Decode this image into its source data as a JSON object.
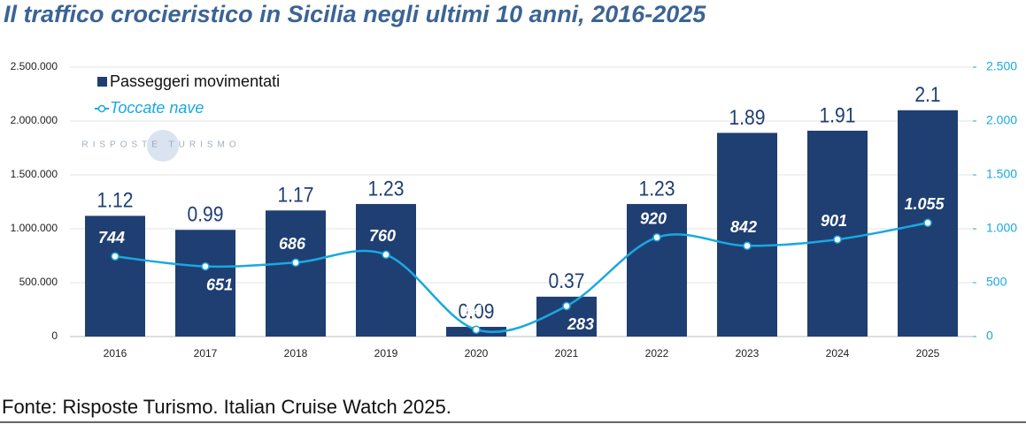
{
  "chart_data": {
    "type": "bar",
    "title": "Il traffico crocieristico in Sicilia negli ultimi 10 anni, 2016-2025",
    "source": "Fonte: Risposte Turismo. Italian Cruise Watch 2025.",
    "watermark": "RISPOSTE TURISMO",
    "categories": [
      "2016",
      "2017",
      "2018",
      "2019",
      "2020",
      "2021",
      "2022",
      "2023",
      "2024",
      "2025"
    ],
    "series": [
      {
        "name": "Passeggeri movimentati",
        "type": "bar",
        "color": "#1f3f73",
        "values": [
          1120000,
          990000,
          1170000,
          1230000,
          90000,
          370000,
          1230000,
          1890000,
          1910000,
          2100000
        ],
        "value_labels": [
          "1.12",
          "0.99",
          "1.17",
          "1.23",
          "0.09",
          "0.37",
          "1.23",
          "1.89",
          "1.91",
          "2.1"
        ]
      },
      {
        "name": "Toccate nave",
        "type": "line",
        "axis": "y2",
        "color": "#19a9e0",
        "values": [
          744,
          651,
          686,
          760,
          64,
          283,
          920,
          842,
          901,
          1055
        ],
        "value_labels": [
          "744",
          "651",
          "686",
          "760",
          "64",
          "283",
          "920",
          "842",
          "901",
          "1.055"
        ]
      }
    ],
    "ylim": [
      0,
      2500000
    ],
    "yticks": [
      0,
      {
        "value": 500000,
        "label": "500.000"
      },
      {
        "value": 1000000,
        "label": "1.000.000"
      },
      {
        "value": 1500000,
        "label": "1.500.000"
      },
      {
        "value": 2000000,
        "label": "2.000.000"
      },
      {
        "value": 2500000,
        "label": "2.500.000"
      }
    ],
    "y2lim": [
      0,
      2500
    ],
    "y2ticks": [
      0,
      500,
      {
        "value": 1000,
        "label": "1.000"
      },
      {
        "value": 1500,
        "label": "1.500"
      },
      {
        "value": 2000,
        "label": "2.000"
      },
      {
        "value": 2500,
        "label": "2.500"
      }
    ],
    "grid": true,
    "legend": "top-left"
  }
}
